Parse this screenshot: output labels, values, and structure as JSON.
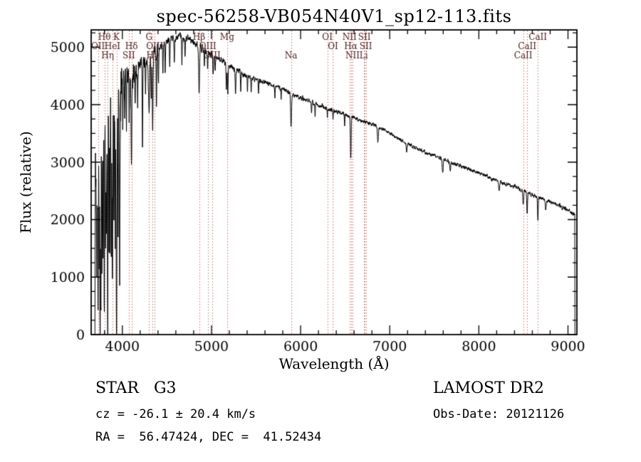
{
  "title": "spec-56258-VB054N40V1_sp12-113.fits",
  "axes": {
    "x_label": "Wavelength (Å)",
    "y_label": "Flux (relative)"
  },
  "footer": {
    "object_class": "STAR   G3",
    "survey": "LAMOST DR2",
    "cz_line": "cz = -26.1 ± 20.4 km/s",
    "obs_date_line": "Obs-Date: 20121126",
    "coords_line": "RA =  56.47424, DEC =  41.52434"
  },
  "chart_data": {
    "type": "line",
    "title": "spec-56258-VB054N40V1_sp12-113.fits",
    "xlabel": "Wavelength (Å)",
    "ylabel": "Flux (relative)",
    "xlim": [
      3650,
      9100
    ],
    "ylim": [
      0,
      5300
    ],
    "xticks": [
      4000,
      5000,
      6000,
      7000,
      8000,
      9000
    ],
    "yticks": [
      0,
      1000,
      2000,
      3000,
      4000,
      5000
    ],
    "xminor": 200,
    "yminor": 250,
    "grid": false,
    "legend": false,
    "wl_range": [
      3692,
      9078,
      2
    ],
    "colors": {
      "spectrum": "#000000",
      "marker_line": "#c87070",
      "marker_label": "#4a1a1a",
      "axis": "#000000",
      "background": "#ffffff"
    },
    "noise": {
      "seed": 20121126,
      "bands": [
        [
          3990,
          1000
        ],
        [
          4150,
          330
        ],
        [
          4400,
          210
        ],
        [
          5000,
          95
        ],
        [
          5500,
          72
        ],
        [
          6500,
          55
        ],
        [
          7500,
          46
        ],
        [
          9200,
          50
        ]
      ]
    },
    "continuum_points": [
      [
        3690,
        200
      ],
      [
        3698,
        2900
      ],
      [
        3706,
        1500
      ],
      [
        3714,
        3100
      ],
      [
        3722,
        2200
      ],
      [
        3730,
        3200
      ],
      [
        3745,
        3000
      ],
      [
        3760,
        3400
      ],
      [
        3780,
        3300
      ],
      [
        3800,
        3600
      ],
      [
        3830,
        3500
      ],
      [
        3860,
        3600
      ],
      [
        3890,
        3700
      ],
      [
        3920,
        3800
      ],
      [
        3950,
        4200
      ],
      [
        3980,
        4400
      ],
      [
        4010,
        4550
      ],
      [
        4060,
        4450
      ],
      [
        4110,
        4500
      ],
      [
        4160,
        4600
      ],
      [
        4210,
        4700
      ],
      [
        4260,
        4780
      ],
      [
        4310,
        4820
      ],
      [
        4360,
        4880
      ],
      [
        4420,
        4980
      ],
      [
        4480,
        5080
      ],
      [
        4560,
        5160
      ],
      [
        4640,
        5200
      ],
      [
        4720,
        5160
      ],
      [
        4800,
        5080
      ],
      [
        4880,
        5000
      ],
      [
        4960,
        4900
      ],
      [
        5040,
        4830
      ],
      [
        5120,
        4760
      ],
      [
        5200,
        4680
      ],
      [
        5300,
        4580
      ],
      [
        5400,
        4500
      ],
      [
        5500,
        4440
      ],
      [
        5600,
        4390
      ],
      [
        5700,
        4330
      ],
      [
        5800,
        4280
      ],
      [
        5900,
        4180
      ],
      [
        6000,
        4120
      ],
      [
        6100,
        4060
      ],
      [
        6200,
        3990
      ],
      [
        6300,
        3930
      ],
      [
        6400,
        3880
      ],
      [
        6500,
        3830
      ],
      [
        6600,
        3770
      ],
      [
        6700,
        3710
      ],
      [
        6800,
        3660
      ],
      [
        6900,
        3590
      ],
      [
        7000,
        3500
      ],
      [
        7100,
        3410
      ],
      [
        7200,
        3330
      ],
      [
        7300,
        3240
      ],
      [
        7400,
        3170
      ],
      [
        7500,
        3110
      ],
      [
        7600,
        3050
      ],
      [
        7700,
        2990
      ],
      [
        7800,
        2930
      ],
      [
        7900,
        2870
      ],
      [
        8000,
        2810
      ],
      [
        8100,
        2740
      ],
      [
        8200,
        2680
      ],
      [
        8300,
        2620
      ],
      [
        8400,
        2570
      ],
      [
        8500,
        2500
      ],
      [
        8600,
        2430
      ],
      [
        8700,
        2370
      ],
      [
        8800,
        2310
      ],
      [
        8900,
        2250
      ],
      [
        9000,
        2160
      ],
      [
        9040,
        2120
      ],
      [
        9078,
        2080
      ]
    ],
    "absorption_lines": [
      [
        3712,
        1800,
        2.5
      ],
      [
        3727,
        2600,
        3
      ],
      [
        3741,
        2200,
        2.5
      ],
      [
        3750,
        2900,
        3
      ],
      [
        3759,
        2400,
        2.5
      ],
      [
        3770,
        2900,
        3
      ],
      [
        3784,
        2100,
        2.5
      ],
      [
        3798,
        3200,
        3
      ],
      [
        3812,
        1900,
        2.5
      ],
      [
        3820,
        2300,
        2.5
      ],
      [
        3835,
        3300,
        3
      ],
      [
        3850,
        2000,
        2.5
      ],
      [
        3860,
        2400,
        2.5
      ],
      [
        3875,
        2100,
        2.5
      ],
      [
        3889,
        3400,
        3
      ],
      [
        3905,
        2000,
        2.5
      ],
      [
        3920,
        2600,
        2.5
      ],
      [
        3934,
        3900,
        4
      ],
      [
        3952,
        2200,
        2.5
      ],
      [
        3969,
        3600,
        4
      ],
      [
        4005,
        1100,
        3
      ],
      [
        4026,
        900,
        3
      ],
      [
        4045,
        800,
        3
      ],
      [
        4077,
        700,
        3
      ],
      [
        4102,
        1600,
        4
      ],
      [
        4144,
        700,
        3
      ],
      [
        4172,
        600,
        3
      ],
      [
        4226,
        1500,
        3
      ],
      [
        4260,
        600,
        3
      ],
      [
        4300,
        900,
        7
      ],
      [
        4325,
        800,
        3
      ],
      [
        4340,
        1300,
        4
      ],
      [
        4383,
        900,
        3
      ],
      [
        4405,
        600,
        3
      ],
      [
        4455,
        500,
        3
      ],
      [
        4481,
        500,
        3
      ],
      [
        4531,
        450,
        3
      ],
      [
        4583,
        400,
        3
      ],
      [
        4668,
        450,
        3
      ],
      [
        4703,
        350,
        3
      ],
      [
        4861,
        820,
        5
      ],
      [
        4920,
        300,
        3
      ],
      [
        4957,
        300,
        3
      ],
      [
        5018,
        350,
        3
      ],
      [
        5041,
        250,
        3
      ],
      [
        5167,
        450,
        4
      ],
      [
        5183,
        500,
        4
      ],
      [
        5270,
        450,
        4
      ],
      [
        5328,
        300,
        3
      ],
      [
        5404,
        280,
        3
      ],
      [
        5446,
        250,
        3
      ],
      [
        5528,
        250,
        3
      ],
      [
        5711,
        200,
        3
      ],
      [
        5782,
        180,
        3
      ],
      [
        5893,
        560,
        5
      ],
      [
        6122,
        220,
        3
      ],
      [
        6162,
        220,
        3
      ],
      [
        6300,
        140,
        3
      ],
      [
        6363,
        120,
        3
      ],
      [
        6494,
        200,
        3
      ],
      [
        6563,
        740,
        4
      ],
      [
        6867,
        260,
        5
      ],
      [
        7190,
        160,
        6
      ],
      [
        7594,
        260,
        5
      ],
      [
        7680,
        140,
        5
      ],
      [
        8227,
        140,
        5
      ],
      [
        8498,
        260,
        4
      ],
      [
        8542,
        380,
        4
      ],
      [
        8662,
        380,
        4
      ],
      [
        8750,
        150,
        4
      ]
    ],
    "spectral_markers": [
      {
        "label": "Hθ",
        "wavelength": 3798,
        "row": 0
      },
      {
        "label": "K",
        "wavelength": 3934,
        "row": 0
      },
      {
        "label": "G",
        "wavelength": 4300,
        "row": 0
      },
      {
        "label": "Hβ",
        "wavelength": 4861,
        "row": 0
      },
      {
        "label": "Mg",
        "wavelength": 5175,
        "row": 0
      },
      {
        "label": "OI",
        "wavelength": 6300,
        "row": 0
      },
      {
        "label": "NII",
        "wavelength": 6548,
        "row": 0
      },
      {
        "label": "SII",
        "wavelength": 6716,
        "row": 0
      },
      {
        "label": "CaII",
        "wavelength": 8662,
        "row": 0
      },
      {
        "label": "OII",
        "wavelength": 3727,
        "row": 1
      },
      {
        "label": "HeI",
        "wavelength": 3889,
        "row": 1
      },
      {
        "label": "Hδ",
        "wavelength": 4102,
        "row": 1
      },
      {
        "label": "OIII",
        "wavelength": 4363,
        "row": 1
      },
      {
        "label": "OIII",
        "wavelength": 4959,
        "row": 1
      },
      {
        "label": "OI",
        "wavelength": 6363,
        "row": 1
      },
      {
        "label": "Hα",
        "wavelength": 6563,
        "row": 1
      },
      {
        "label": "SII",
        "wavelength": 6731,
        "row": 1
      },
      {
        "label": "CaII",
        "wavelength": 8542,
        "row": 1
      },
      {
        "label": "Hη",
        "wavelength": 3835,
        "row": 2
      },
      {
        "label": "SII",
        "wavelength": 4072,
        "row": 2
      },
      {
        "label": "Hγ",
        "wavelength": 4340,
        "row": 2
      },
      {
        "label": "OIII",
        "wavelength": 5007,
        "row": 2
      },
      {
        "label": "Na",
        "wavelength": 5893,
        "row": 2
      },
      {
        "label": "NII",
        "wavelength": 6583,
        "row": 2
      },
      {
        "label": "Li",
        "wavelength": 6708,
        "row": 2
      },
      {
        "label": "CaII",
        "wavelength": 8498,
        "row": 2
      }
    ]
  }
}
